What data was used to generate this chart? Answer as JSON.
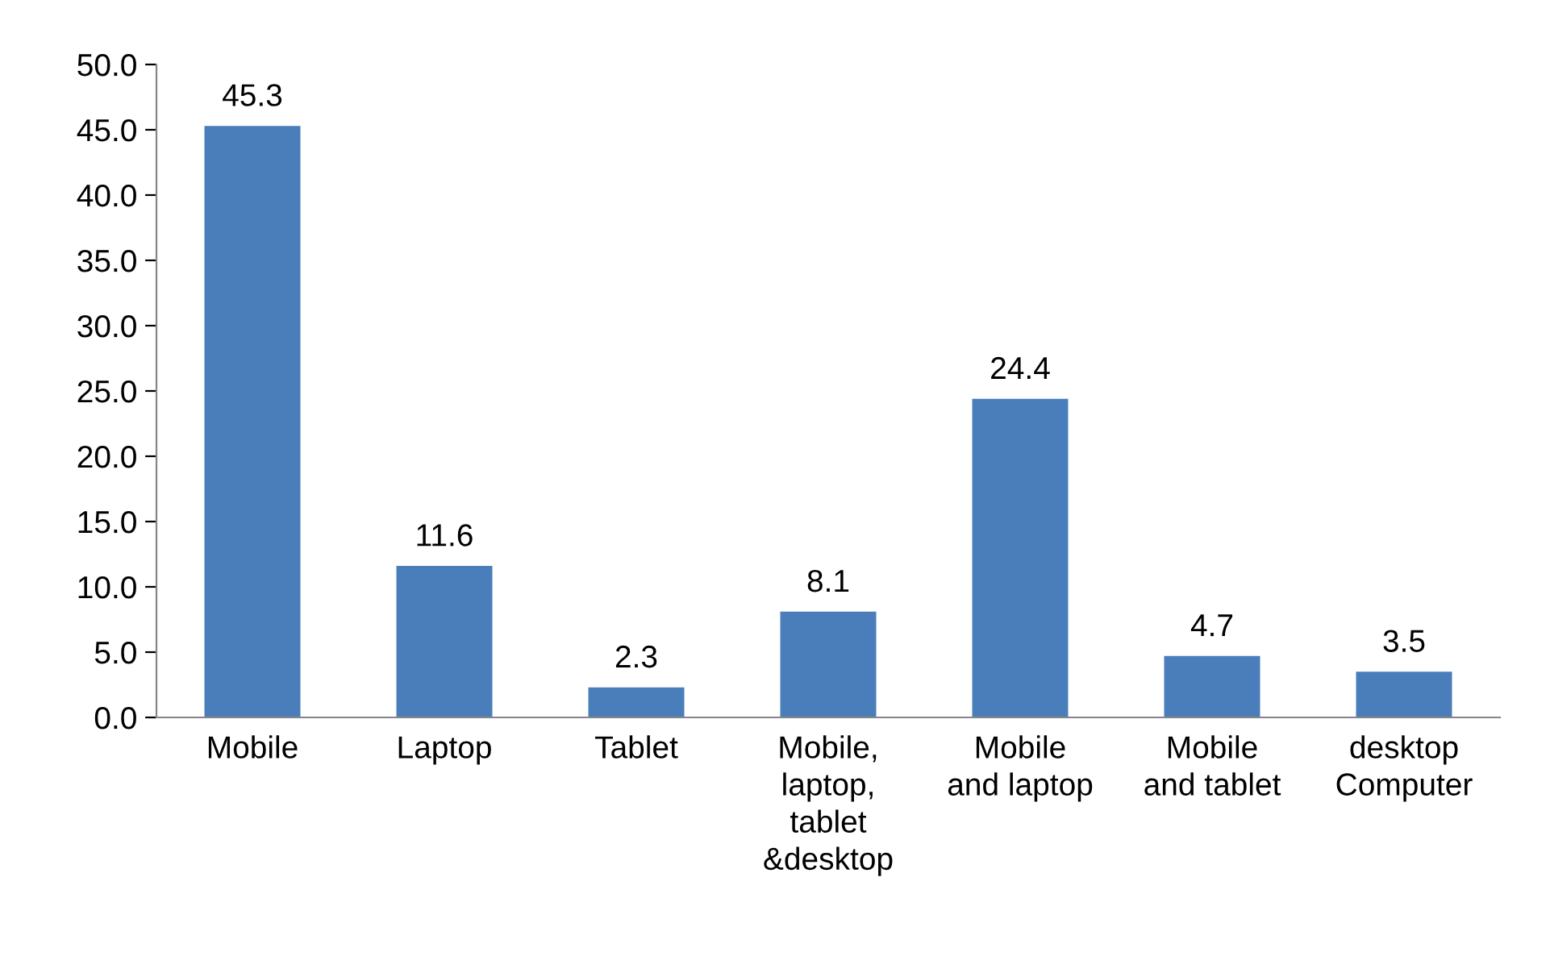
{
  "chart_data": {
    "type": "bar",
    "categories": [
      "Mobile",
      "Laptop",
      "Tablet",
      "Mobile,\nlaptop,\ntablet\n&desktop",
      "Mobile\nand laptop",
      "Mobile\nand tablet",
      "desktop\nComputer"
    ],
    "values": [
      45.3,
      11.6,
      2.3,
      8.1,
      24.4,
      4.7,
      3.5
    ],
    "color": "#4a7ebb",
    "ylim": [
      0,
      50
    ],
    "yticks": [
      {
        "value": 0,
        "label": "0.0"
      },
      {
        "value": 5,
        "label": "5.0"
      },
      {
        "value": 10,
        "label": "10.0"
      },
      {
        "value": 15,
        "label": "15.0"
      },
      {
        "value": 20,
        "label": "20.0"
      },
      {
        "value": 25,
        "label": "25.0"
      },
      {
        "value": 30,
        "label": "30.0"
      },
      {
        "value": 35,
        "label": "35.0"
      },
      {
        "value": 40,
        "label": "40.0"
      },
      {
        "value": 45,
        "label": "45.0"
      },
      {
        "value": 50,
        "label": "50.0"
      }
    ],
    "data_labels": true,
    "grid": false
  }
}
